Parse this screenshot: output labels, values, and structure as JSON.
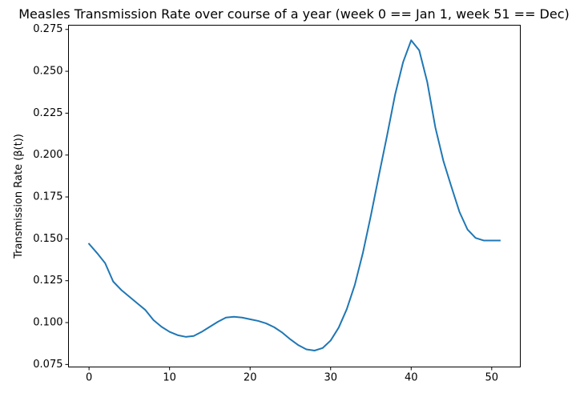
{
  "chart_data": {
    "type": "line",
    "title": "Measles Transmission Rate over course of a year (week 0 == Jan 1, week 51 == Dec)",
    "xlabel": "",
    "ylabel": "Transmission Rate (β(t))",
    "xlim": [
      -2.55,
      53.55
    ],
    "ylim": [
      0.0735,
      0.2775
    ],
    "xticks": [
      0,
      10,
      20,
      30,
      40,
      50
    ],
    "xtick_labels": [
      "0",
      "10",
      "20",
      "30",
      "40",
      "50"
    ],
    "yticks": [
      0.075,
      0.1,
      0.125,
      0.15,
      0.175,
      0.2,
      0.225,
      0.25,
      0.275
    ],
    "ytick_labels": [
      "0.075",
      "0.100",
      "0.125",
      "0.150",
      "0.175",
      "0.200",
      "0.225",
      "0.250",
      "0.275"
    ],
    "grid": false,
    "legend": "none",
    "colors": {
      "line": "#1f77b4"
    },
    "series": [
      {
        "x": [
          0,
          1,
          2,
          3,
          4,
          5,
          6,
          7,
          8,
          9,
          10,
          11,
          12,
          13,
          14,
          15,
          16,
          17,
          18,
          19,
          20,
          21,
          22,
          23,
          24,
          25,
          26,
          27,
          28,
          29,
          30,
          31,
          32,
          33,
          34,
          35,
          36,
          37,
          38,
          39,
          40,
          41,
          42,
          43,
          44,
          45,
          46,
          47,
          48,
          49,
          50,
          51
        ],
        "values": [
          0.147,
          0.1415,
          0.1355,
          0.1245,
          0.1195,
          0.1155,
          0.1115,
          0.1075,
          0.1015,
          0.0975,
          0.0945,
          0.0925,
          0.0915,
          0.092,
          0.0945,
          0.0975,
          0.1005,
          0.103,
          0.1035,
          0.103,
          0.102,
          0.101,
          0.0995,
          0.0972,
          0.094,
          0.09,
          0.0865,
          0.084,
          0.0833,
          0.0848,
          0.0893,
          0.097,
          0.108,
          0.1225,
          0.1415,
          0.164,
          0.188,
          0.2115,
          0.236,
          0.2555,
          0.2685,
          0.2625,
          0.2435,
          0.2165,
          0.1965,
          0.181,
          0.166,
          0.1555,
          0.1505,
          0.149,
          0.149,
          0.149
        ]
      }
    ]
  }
}
